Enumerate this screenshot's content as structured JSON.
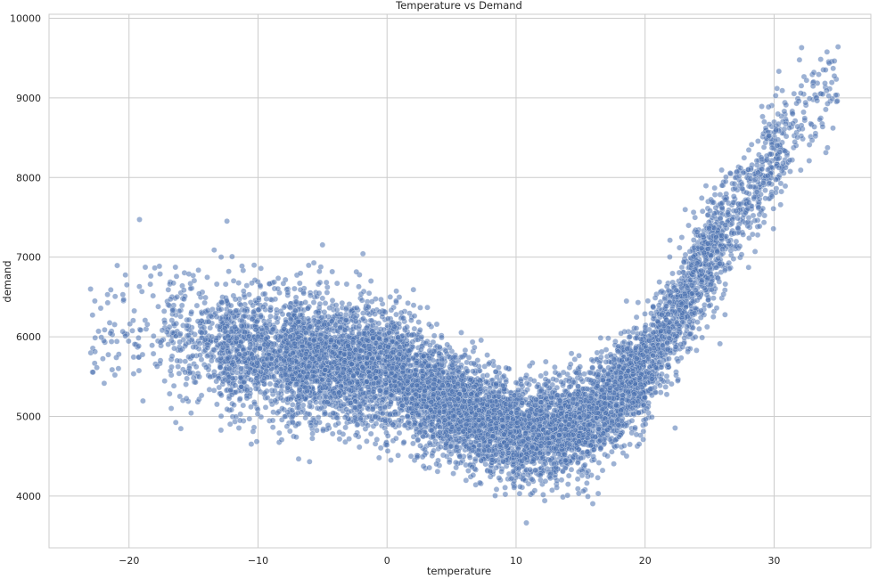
{
  "chart_data": {
    "type": "scatter",
    "title": "Temperature vs Demand",
    "xlabel": "temperature",
    "ylabel": "demand",
    "xlim": [
      -26.2,
      37.5
    ],
    "ylim": [
      3350,
      10050
    ],
    "xticks": [
      -20,
      -10,
      0,
      10,
      20,
      30
    ],
    "yticks": [
      4000,
      5000,
      6000,
      7000,
      8000,
      9000,
      10000
    ],
    "xtick_labels": [
      "−20",
      "−10",
      "0",
      "10",
      "20",
      "30"
    ],
    "ytick_labels": [
      "4000",
      "5000",
      "6000",
      "7000",
      "8000",
      "9000",
      "10000"
    ],
    "grid": true,
    "legend": "none",
    "point_color": "#4c72b0",
    "point_alpha": 0.55,
    "trend_profile": {
      "x": [
        -23,
        -20,
        -15,
        -10,
        -5,
        0,
        5,
        10,
        15,
        20,
        25,
        30,
        34
      ],
      "mean_demand": [
        6050,
        6150,
        6000,
        5800,
        5700,
        5600,
        5150,
        4800,
        4900,
        5600,
        7000,
        8250,
        9050
      ],
      "spread_sd": [
        700,
        700,
        650,
        600,
        650,
        650,
        550,
        500,
        500,
        550,
        550,
        550,
        600
      ]
    },
    "density_by_x": [
      {
        "from": -23,
        "to": -17,
        "relative_density": 0.07
      },
      {
        "from": -17,
        "to": -13,
        "relative_density": 0.25
      },
      {
        "from": -13,
        "to": -8,
        "relative_density": 0.6
      },
      {
        "from": -8,
        "to": 20,
        "relative_density": 1.0
      },
      {
        "from": 20,
        "to": 26,
        "relative_density": 0.6
      },
      {
        "from": 26,
        "to": 31,
        "relative_density": 0.3
      },
      {
        "from": 31,
        "to": 35,
        "relative_density": 0.08
      }
    ],
    "extremes": {
      "min_demand": 3600,
      "max_demand": 9770,
      "min_temperature": -23,
      "max_temperature": 35
    }
  }
}
